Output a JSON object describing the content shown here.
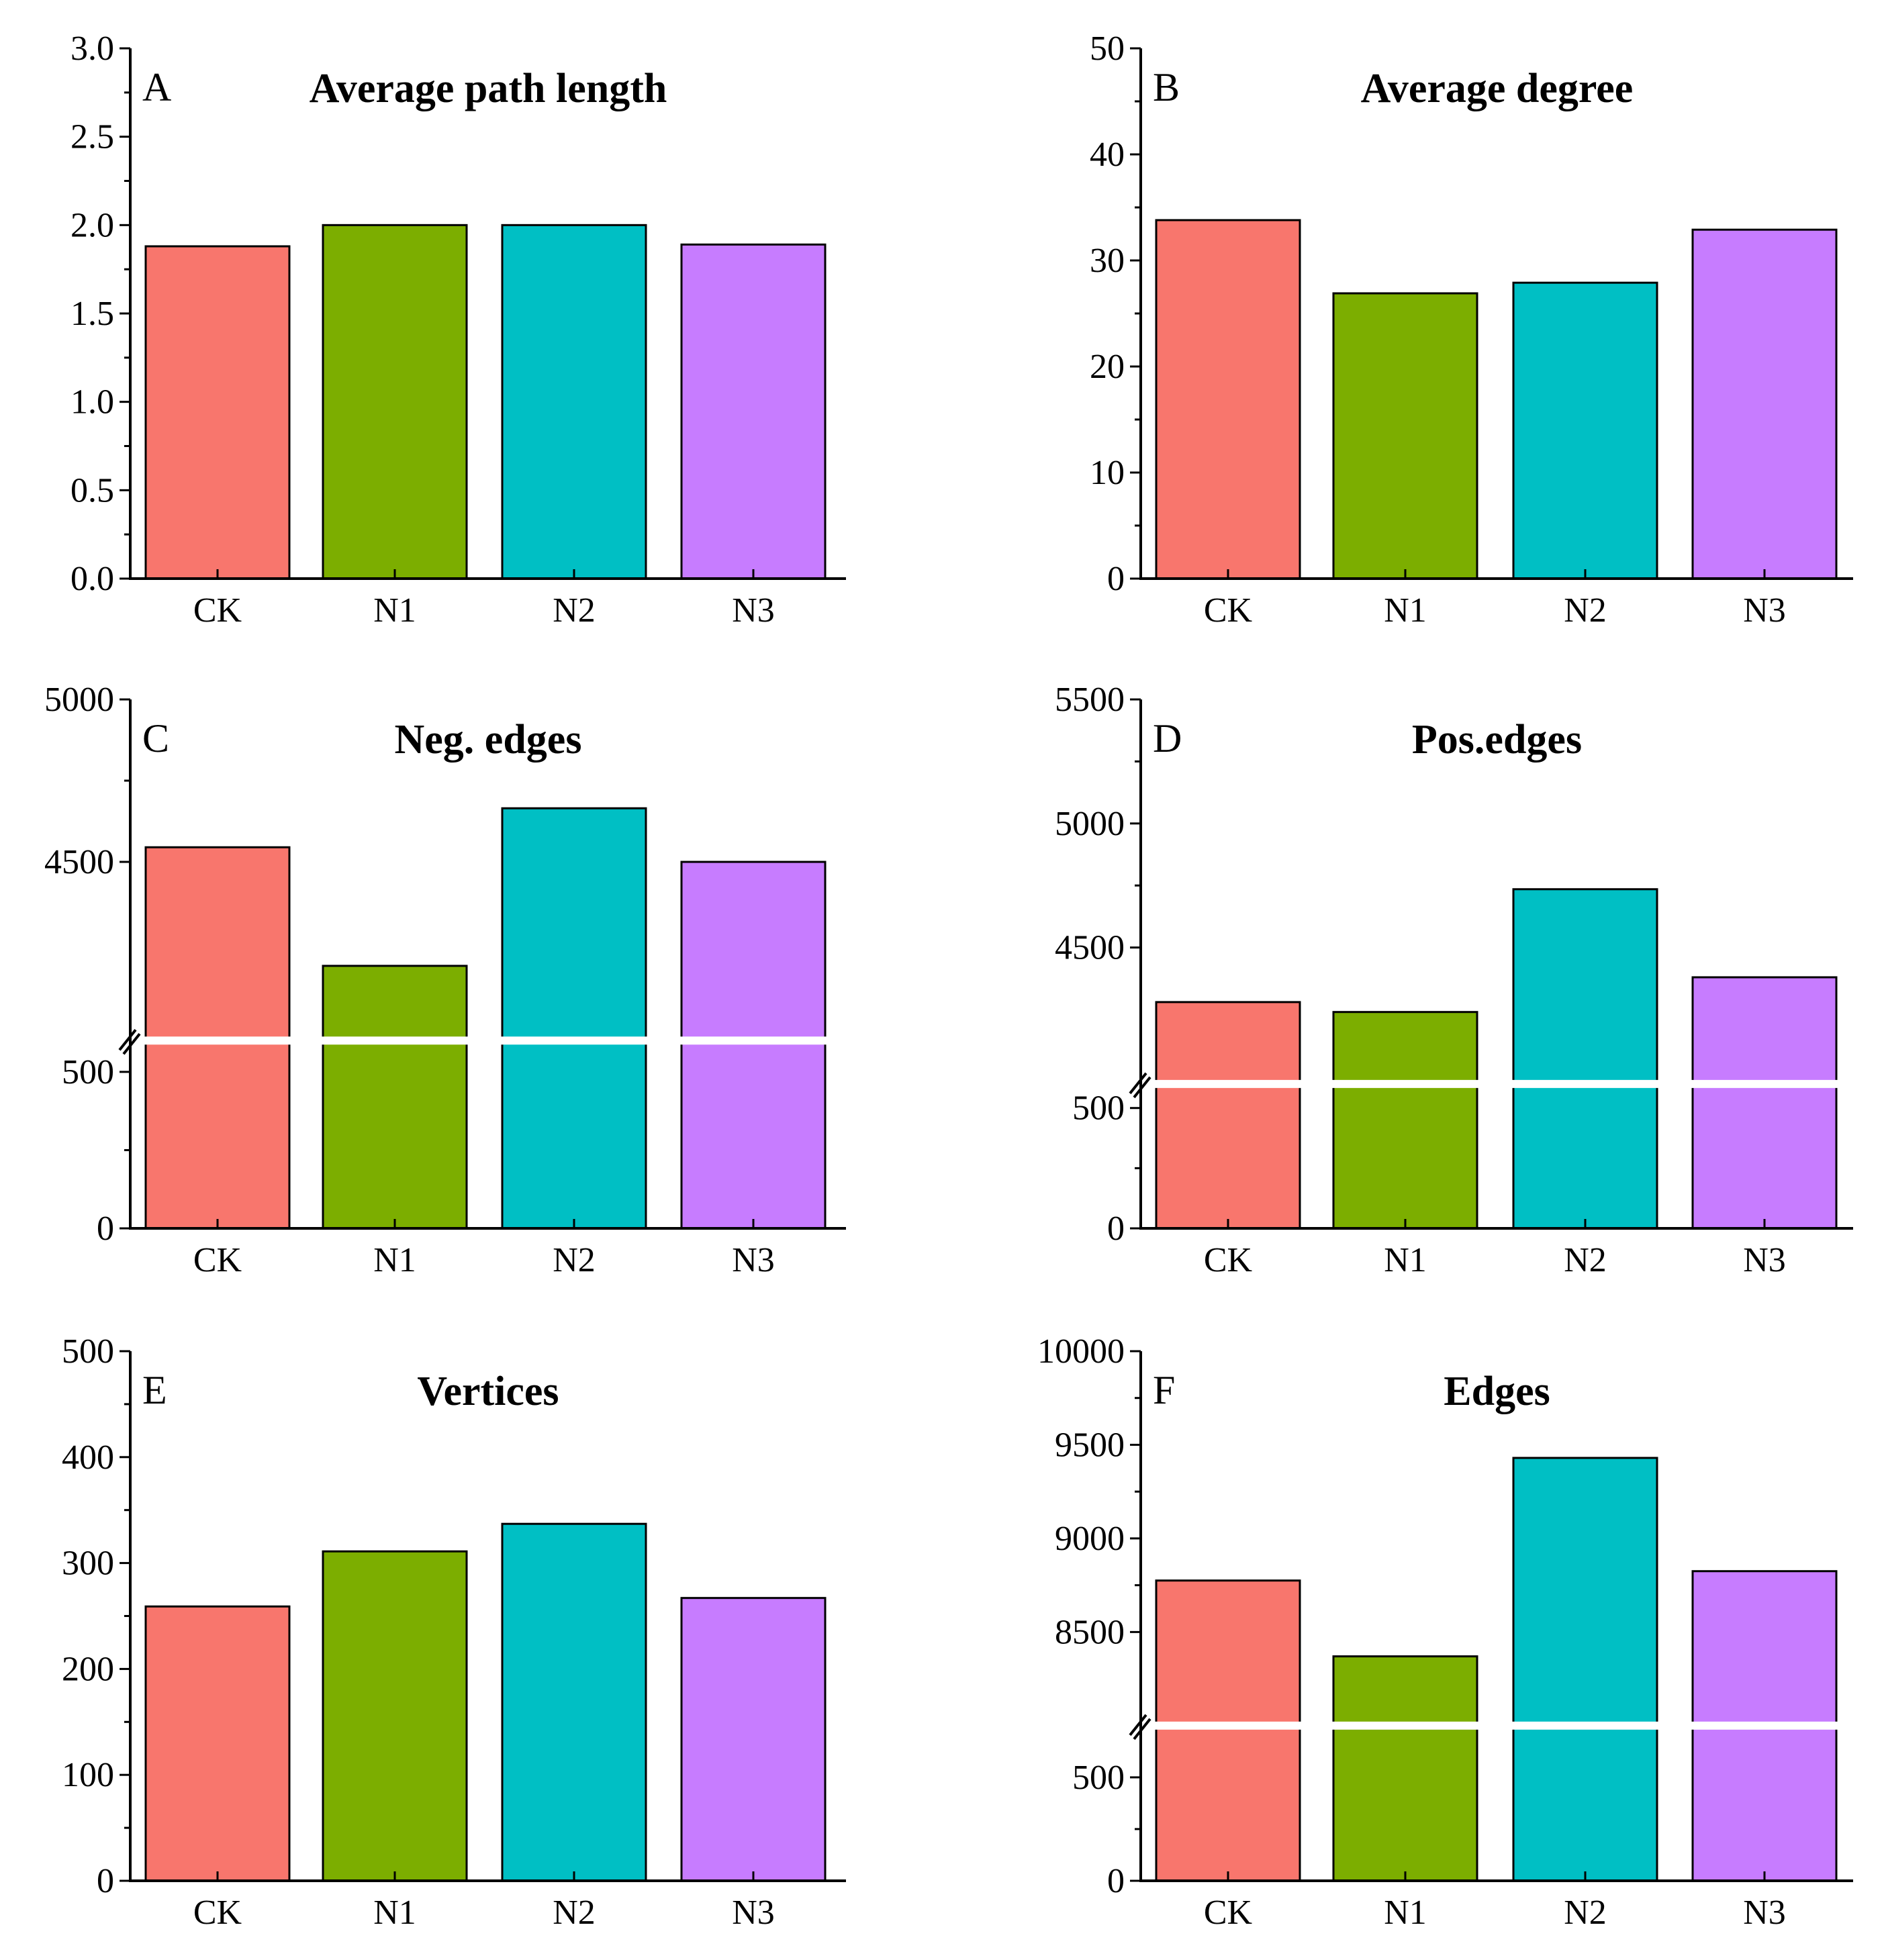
{
  "colors": {
    "CK": "#F8766D",
    "N1": "#7CAE00",
    "N2": "#00BFC4",
    "N3": "#C77CFF",
    "axis": "#000000",
    "background": "#FFFFFF"
  },
  "chart_data": [
    {
      "type": "bar",
      "panel": "A",
      "title": "Average path length",
      "categories": [
        "CK",
        "N1",
        "N2",
        "N3"
      ],
      "values": [
        1.88,
        2.0,
        2.0,
        1.89
      ],
      "ylim": [
        0,
        3.0
      ],
      "yticks": [
        0,
        0.5,
        1.0,
        1.5,
        2.0,
        2.5,
        3.0
      ],
      "ytick_labels": [
        "0.0",
        "0.5",
        "1.0",
        "1.5",
        "2.0",
        "2.5",
        "3.0"
      ],
      "xlabel": "",
      "ylabel": "",
      "axis_break": null
    },
    {
      "type": "bar",
      "panel": "B",
      "title": "Average degree",
      "categories": [
        "CK",
        "N1",
        "N2",
        "N3"
      ],
      "values": [
        33.8,
        26.9,
        27.9,
        32.9
      ],
      "ylim": [
        0,
        50
      ],
      "yticks": [
        0,
        10,
        20,
        30,
        40,
        50
      ],
      "ytick_labels": [
        "0",
        "10",
        "20",
        "30",
        "40",
        "50"
      ],
      "xlabel": "",
      "ylabel": "",
      "axis_break": null
    },
    {
      "type": "bar",
      "panel": "C",
      "title": "Neg. edges",
      "categories": [
        "CK",
        "N1",
        "N2",
        "N3"
      ],
      "values": [
        4545,
        4180,
        4665,
        4500
      ],
      "ylim": [
        0,
        5000
      ],
      "yticks": [
        0,
        500,
        4500,
        5000
      ],
      "ytick_labels": [
        "0",
        "500",
        "4500",
        "5000"
      ],
      "xlabel": "",
      "ylabel": "",
      "axis_break": {
        "lower_max": 600,
        "upper_min": 3950
      }
    },
    {
      "type": "bar",
      "panel": "D",
      "title": "Pos.edges",
      "categories": [
        "CK",
        "N1",
        "N2",
        "N3"
      ],
      "values": [
        4280,
        4240,
        4735,
        4380
      ],
      "ylim": [
        0,
        5500
      ],
      "yticks": [
        0,
        500,
        4500,
        5000,
        5500
      ],
      "ytick_labels": [
        "0",
        "500",
        "4500",
        "5000",
        "5500"
      ],
      "xlabel": "",
      "ylabel": "",
      "axis_break": {
        "lower_max": 600,
        "upper_min": 3950
      }
    },
    {
      "type": "bar",
      "panel": "E",
      "title": "Vertices",
      "categories": [
        "CK",
        "N1",
        "N2",
        "N3"
      ],
      "values": [
        259,
        311,
        337,
        267
      ],
      "ylim": [
        0,
        500
      ],
      "yticks": [
        0,
        100,
        200,
        300,
        400,
        500
      ],
      "ytick_labels": [
        "0",
        "100",
        "200",
        "300",
        "400",
        "500"
      ],
      "xlabel": "",
      "ylabel": "",
      "axis_break": null
    },
    {
      "type": "bar",
      "panel": "F",
      "title": "Edges",
      "categories": [
        "CK",
        "N1",
        "N2",
        "N3"
      ],
      "values": [
        8775,
        8370,
        9430,
        8825
      ],
      "ylim": [
        0,
        10000
      ],
      "yticks": [
        0,
        500,
        8500,
        9000,
        9500,
        10000
      ],
      "ytick_labels": [
        "0",
        "500",
        "8500",
        "9000",
        "9500",
        "10000"
      ],
      "xlabel": "",
      "ylabel": "",
      "axis_break": {
        "lower_max": 750,
        "upper_min": 8000
      }
    }
  ]
}
